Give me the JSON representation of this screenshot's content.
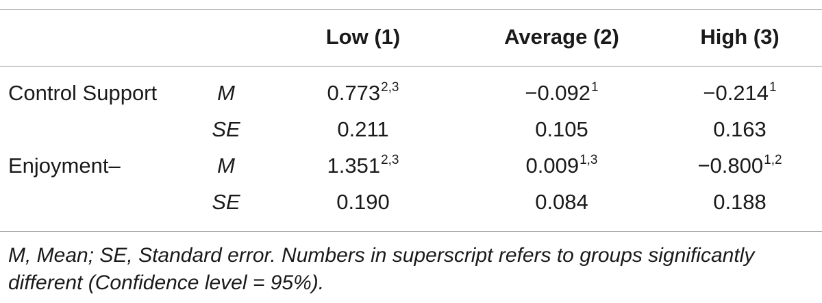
{
  "table": {
    "headers": [
      "Low (1)",
      "Average (2)",
      "High (3)"
    ],
    "rows": [
      {
        "label": "Control Support",
        "stat": "M",
        "cells": [
          {
            "value": "0.773",
            "sup": "2,3"
          },
          {
            "value": "−0.092",
            "sup": "1"
          },
          {
            "value": "−0.214",
            "sup": "1"
          }
        ]
      },
      {
        "label": "",
        "stat": "SE",
        "cells": [
          {
            "value": "0.211",
            "sup": ""
          },
          {
            "value": "0.105",
            "sup": ""
          },
          {
            "value": "0.163",
            "sup": ""
          }
        ]
      },
      {
        "label": "Enjoyment–",
        "stat": "M",
        "cells": [
          {
            "value": "1.351",
            "sup": "2,3"
          },
          {
            "value": "0.009",
            "sup": "1,3"
          },
          {
            "value": "−0.800",
            "sup": "1,2"
          }
        ]
      },
      {
        "label": "",
        "stat": "SE",
        "cells": [
          {
            "value": "0.190",
            "sup": ""
          },
          {
            "value": "0.084",
            "sup": ""
          },
          {
            "value": "0.188",
            "sup": ""
          }
        ]
      }
    ]
  },
  "footnote": "M, Mean; SE, Standard error. Numbers in superscript refers to groups significantly different (Confidence level = 95%)."
}
